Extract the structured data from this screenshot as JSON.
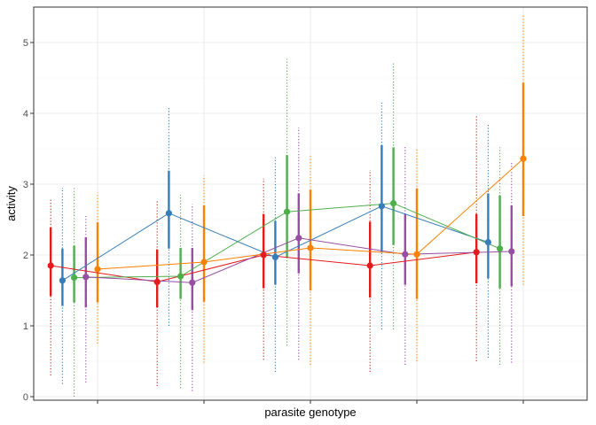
{
  "chart_data": {
    "type": "line",
    "title": "",
    "xlabel": "parasite genotype",
    "ylabel": "activity",
    "ylim": [
      -0.05,
      5.5
    ],
    "yticks": [
      0,
      1,
      2,
      3,
      4,
      5
    ],
    "categories": [
      "",
      "",
      "",
      "",
      ""
    ],
    "grid": true,
    "legend": "none",
    "series": [
      {
        "color": "#e41a1c",
        "values": [
          1.85,
          1.62,
          2.0,
          1.85,
          2.04
        ],
        "ci_inner": [
          [
            1.42,
            2.39
          ],
          [
            1.26,
            2.08
          ],
          [
            1.53,
            2.58
          ],
          [
            1.4,
            2.47
          ],
          [
            1.6,
            2.58
          ]
        ],
        "ci_outer": [
          [
            0.3,
            2.78
          ],
          [
            0.15,
            2.78
          ],
          [
            0.52,
            3.08
          ],
          [
            0.35,
            3.2
          ],
          [
            0.5,
            3.97
          ]
        ]
      },
      {
        "color": "#377eb8",
        "values": [
          1.64,
          2.59,
          1.97,
          2.69,
          2.18
        ],
        "ci_inner": [
          [
            1.28,
            2.09
          ],
          [
            2.09,
            3.19
          ],
          [
            1.58,
            2.48
          ],
          [
            2.04,
            3.55
          ],
          [
            1.67,
            2.87
          ]
        ],
        "ci_outer": [
          [
            0.18,
            2.95
          ],
          [
            1.0,
            4.1
          ],
          [
            0.35,
            3.38
          ],
          [
            0.95,
            4.15
          ],
          [
            0.55,
            3.85
          ]
        ]
      },
      {
        "color": "#4daf4a",
        "values": [
          1.68,
          1.7,
          2.61,
          2.73,
          2.09
        ],
        "ci_inner": [
          [
            1.33,
            2.13
          ],
          [
            1.38,
            2.1
          ],
          [
            1.97,
            3.41
          ],
          [
            2.14,
            3.52
          ],
          [
            1.53,
            2.84
          ]
        ],
        "ci_outer": [
          [
            0.0,
            2.95
          ],
          [
            0.12,
            2.85
          ],
          [
            0.72,
            4.77
          ],
          [
            0.95,
            4.72
          ],
          [
            0.45,
            3.52
          ]
        ]
      },
      {
        "color": "#984ea3",
        "values": [
          1.69,
          1.61,
          2.24,
          2.01,
          2.05
        ],
        "ci_inner": [
          [
            1.26,
            2.25
          ],
          [
            1.22,
            2.1
          ],
          [
            1.74,
            2.87
          ],
          [
            1.58,
            2.58
          ],
          [
            1.56,
            2.7
          ]
        ],
        "ci_outer": [
          [
            0.2,
            2.55
          ],
          [
            0.08,
            2.72
          ],
          [
            0.52,
            3.8
          ],
          [
            0.45,
            3.55
          ],
          [
            0.48,
            3.32
          ]
        ]
      },
      {
        "color": "#ff7f00",
        "values": [
          1.8,
          1.9,
          2.1,
          2.01,
          3.36
        ],
        "ci_inner": [
          [
            1.33,
            2.46
          ],
          [
            1.34,
            2.7
          ],
          [
            1.5,
            2.92
          ],
          [
            1.38,
            2.94
          ],
          [
            2.55,
            4.43
          ]
        ],
        "ci_outer": [
          [
            0.75,
            2.88
          ],
          [
            0.48,
            3.12
          ],
          [
            0.45,
            3.4
          ],
          [
            0.5,
            3.5
          ],
          [
            1.58,
            5.38
          ]
        ]
      }
    ]
  }
}
